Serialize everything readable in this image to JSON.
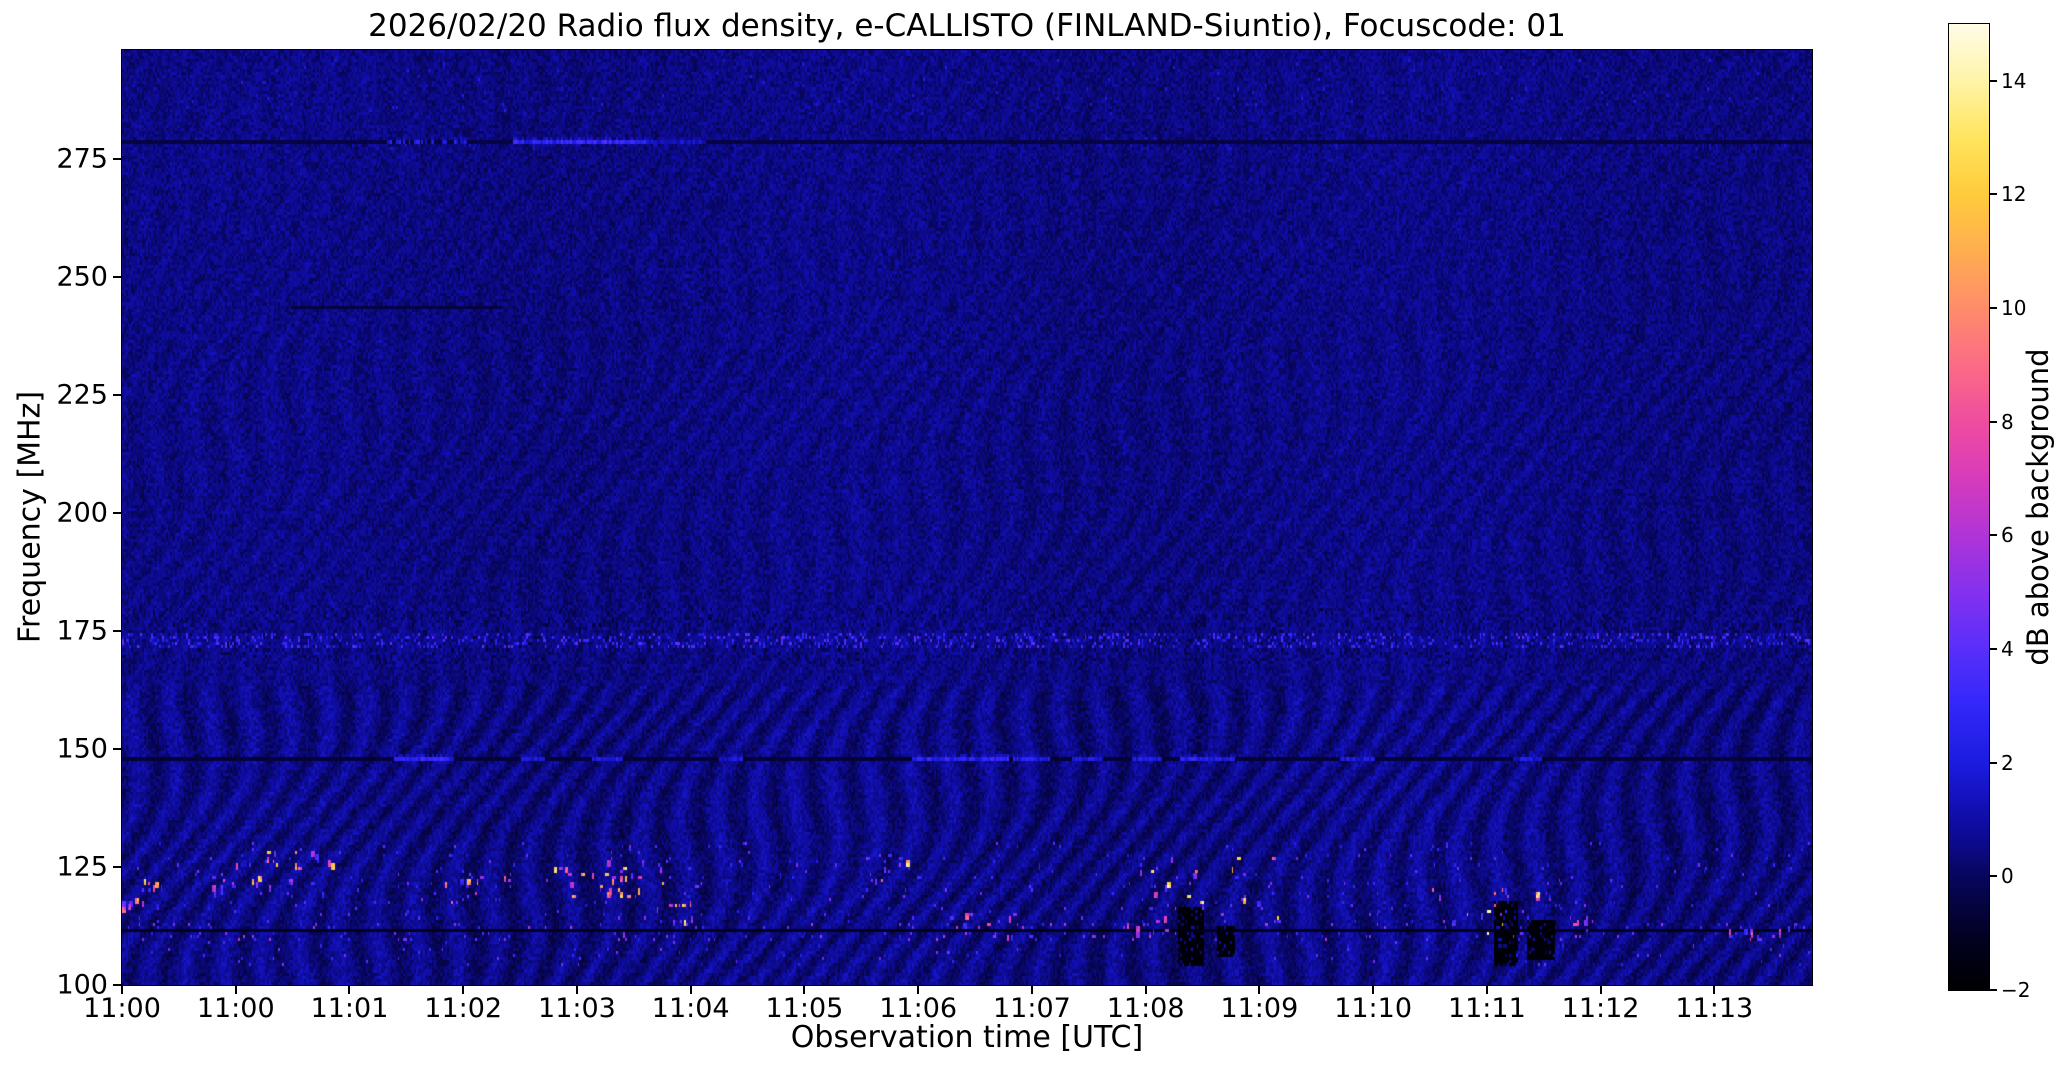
{
  "colors": {
    "background": "#ffffff",
    "text": "#000000"
  },
  "chart_data": {
    "type": "heatmap",
    "title": "2026/02/20  Radio flux density, e-CALLISTO (FINLAND-Siuntio), Focuscode: 01",
    "xlabel": "Observation time [UTC]",
    "ylabel": "Frequency [MHz]",
    "x_ticks": [
      "11:00",
      "11:00",
      "11:01",
      "11:02",
      "11:03",
      "11:04",
      "11:05",
      "11:06",
      "11:07",
      "11:08",
      "11:09",
      "11:10",
      "11:11",
      "11:12",
      "11:13"
    ],
    "y_ticks": [
      100,
      125,
      150,
      175,
      200,
      225,
      250,
      275
    ],
    "y_range": [
      100,
      298
    ],
    "grid": false,
    "colorbar": {
      "label": "dB above background",
      "range": [
        -2,
        15
      ],
      "ticks": [
        {
          "v": -2,
          "label": "−2"
        },
        {
          "v": 0,
          "label": "0"
        },
        {
          "v": 2,
          "label": "2"
        },
        {
          "v": 4,
          "label": "4"
        },
        {
          "v": 6,
          "label": "6"
        },
        {
          "v": 8,
          "label": "8"
        },
        {
          "v": 10,
          "label": "10"
        },
        {
          "v": 12,
          "label": "12"
        },
        {
          "v": 14,
          "label": "14"
        }
      ]
    },
    "colormap_stops": [
      {
        "t": 0.0,
        "c": "#000000"
      },
      {
        "t": 0.059,
        "c": "#030226"
      },
      {
        "t": 0.118,
        "c": "#08065e"
      },
      {
        "t": 0.147,
        "c": "#0c0a86"
      },
      {
        "t": 0.176,
        "c": "#100da8"
      },
      {
        "t": 0.235,
        "c": "#1c1ce0"
      },
      {
        "t": 0.294,
        "c": "#3328fa"
      },
      {
        "t": 0.353,
        "c": "#5a2ffb"
      },
      {
        "t": 0.412,
        "c": "#8531ef"
      },
      {
        "t": 0.471,
        "c": "#b035d8"
      },
      {
        "t": 0.529,
        "c": "#d83bbd"
      },
      {
        "t": 0.588,
        "c": "#f04da0"
      },
      {
        "t": 0.647,
        "c": "#fc6c86"
      },
      {
        "t": 0.706,
        "c": "#ff8d6b"
      },
      {
        "t": 0.765,
        "c": "#ffae51"
      },
      {
        "t": 0.824,
        "c": "#ffcc3d"
      },
      {
        "t": 0.882,
        "c": "#ffe55e"
      },
      {
        "t": 0.941,
        "c": "#fff4a8"
      },
      {
        "t": 1.0,
        "c": "#fffce8"
      }
    ],
    "background_level_db": 0.45,
    "noise_amplitude_db": 1.15,
    "rfi_lines": [
      {
        "freq": 278.5,
        "base_db": -0.5,
        "segments": [
          {
            "t": [
              0.157,
              0.204
            ],
            "db": 2.0,
            "dashed": true
          },
          {
            "t": [
              0.232,
              0.311
            ],
            "db": 2.7
          },
          {
            "t": [
              0.311,
              0.345
            ],
            "db": 1.4
          }
        ]
      },
      {
        "freq": 244,
        "base_db": -0.55,
        "t_extent": [
          0.1,
          0.225
        ],
        "segments": []
      },
      {
        "freq": 148,
        "base_db": -0.7,
        "segments": [
          {
            "t": [
              0.161,
              0.196
            ],
            "db": 2.6
          },
          {
            "t": [
              0.236,
              0.25
            ],
            "db": 1.8
          },
          {
            "t": [
              0.279,
              0.296
            ],
            "db": 2.0
          },
          {
            "t": [
              0.354,
              0.367
            ],
            "db": 1.7
          },
          {
            "t": [
              0.468,
              0.524
            ],
            "db": 2.6
          },
          {
            "t": [
              0.528,
              0.548
            ],
            "db": 2.2
          },
          {
            "t": [
              0.563,
              0.58
            ],
            "db": 1.8
          },
          {
            "t": [
              0.598,
              0.615
            ],
            "db": 1.9
          },
          {
            "t": [
              0.627,
              0.658
            ],
            "db": 2.3
          },
          {
            "t": [
              0.721,
              0.741
            ],
            "db": 2.0
          },
          {
            "t": [
              0.823,
              0.84
            ],
            "db": 1.7
          }
        ]
      },
      {
        "freq": 111,
        "base_db": -1.25,
        "segments": []
      }
    ],
    "speckle_bands": [
      {
        "freq": [
          171.8,
          174.2
        ],
        "prob": 0.22,
        "db": [
          1.4,
          4.2
        ]
      },
      {
        "freq": [
          168.0,
          179.5
        ],
        "prob": 0.12,
        "db": [
          -0.9,
          1.4
        ]
      },
      {
        "freq": [
          285.0,
          296.0
        ],
        "prob": 0.01,
        "db": [
          1.0,
          2.3
        ]
      },
      {
        "freq": [
          277.6,
          279.4
        ],
        "prob": 0.05,
        "db": [
          0.8,
          1.7
        ]
      },
      {
        "freq": [
          104.0,
          130.0
        ],
        "prob": 0.012,
        "db": [
          2.0,
          5.0
        ]
      },
      {
        "freq": [
          109.5,
          112.5
        ],
        "prob": 0.03,
        "db": [
          2.5,
          6.5
        ]
      }
    ],
    "burst_clusters": [
      {
        "t": [
          0.0,
          0.025
        ],
        "freq": [
          116,
          122
        ],
        "n": 14,
        "db": [
          3,
          12
        ]
      },
      {
        "t": [
          0.048,
          0.062
        ],
        "freq": [
          119,
          123
        ],
        "n": 6,
        "db": [
          3,
          7
        ]
      },
      {
        "t": [
          0.065,
          0.125
        ],
        "freq": [
          119,
          128
        ],
        "n": 22,
        "db": [
          3,
          13
        ]
      },
      {
        "t": [
          0.185,
          0.235
        ],
        "freq": [
          117,
          124
        ],
        "n": 16,
        "db": [
          3,
          10
        ]
      },
      {
        "t": [
          0.255,
          0.3
        ],
        "freq": [
          118,
          126
        ],
        "n": 14,
        "db": [
          3,
          12
        ]
      },
      {
        "t": [
          0.283,
          0.345
        ],
        "freq": [
          115,
          127
        ],
        "n": 22,
        "db": [
          3,
          13
        ]
      },
      {
        "t": [
          0.322,
          0.34
        ],
        "freq": [
          113,
          119
        ],
        "n": 8,
        "db": [
          4,
          13
        ]
      },
      {
        "t": [
          0.44,
          0.475
        ],
        "freq": [
          121,
          127
        ],
        "n": 10,
        "db": [
          3,
          12
        ]
      },
      {
        "t": [
          0.49,
          0.53
        ],
        "freq": [
          110,
          116
        ],
        "n": 10,
        "db": [
          3,
          8
        ]
      },
      {
        "t": [
          0.595,
          0.62
        ],
        "freq": [
          110,
          114
        ],
        "n": 8,
        "db": [
          3,
          8
        ]
      },
      {
        "t": [
          0.6,
          0.685
        ],
        "freq": [
          111,
          127
        ],
        "n": 30,
        "db": [
          3,
          14
        ]
      },
      {
        "t": [
          0.775,
          0.845
        ],
        "freq": [
          110,
          123
        ],
        "n": 24,
        "db": [
          3,
          13
        ]
      },
      {
        "t": [
          0.858,
          0.87
        ],
        "freq": [
          111,
          114
        ],
        "n": 5,
        "db": [
          3,
          7
        ]
      },
      {
        "t": [
          0.945,
          1.0
        ],
        "freq": [
          109,
          113
        ],
        "n": 14,
        "db": [
          3,
          8
        ]
      }
    ],
    "dark_blocks": [
      {
        "t": [
          0.625,
          0.64
        ],
        "freq": [
          104,
          116
        ]
      },
      {
        "t": [
          0.648,
          0.658
        ],
        "freq": [
          106,
          112
        ]
      },
      {
        "t": [
          0.812,
          0.826
        ],
        "freq": [
          104,
          117
        ]
      },
      {
        "t": [
          0.832,
          0.847
        ],
        "freq": [
          105,
          113
        ]
      }
    ]
  }
}
